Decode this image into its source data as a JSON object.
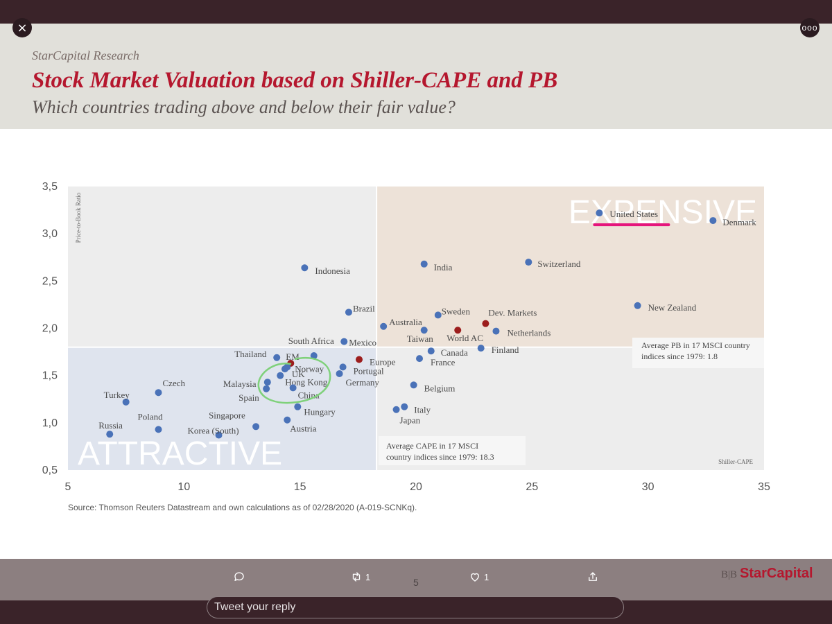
{
  "window": {
    "close_icon": "×",
    "more_icon": "ooo"
  },
  "slide": {
    "brand": "StarCapital Research",
    "title": "Stock Market Valuation based on Shiller-CAPE and PB",
    "subtitle": "Which countries trading above and below their fair value?",
    "source": "Source: Thomson Reuters Datastream and own calculations as of 02/28/2020 (A-019-SCNKq).",
    "logo_mark": "B|B",
    "logo_text": "StarCapital",
    "page_number": "5"
  },
  "chart_data": {
    "type": "scatter",
    "ylabel": "Price-to-Book Ratio",
    "xlabel": "Shiller-CAPE",
    "xlim": [
      5,
      35
    ],
    "ylim": [
      0.5,
      3.5
    ],
    "x_ticks": [
      "5",
      "10",
      "15",
      "20",
      "25",
      "30",
      "35"
    ],
    "y_ticks": [
      "0,5",
      "1,0",
      "1,5",
      "2,0",
      "2,5",
      "3,0",
      "3,5"
    ],
    "avg_cape": 18.3,
    "avg_pb": 1.8,
    "region_labels": {
      "expensive": "EXPENSIVE",
      "attractive": "ATTRACTIVE"
    },
    "annotations": {
      "avg_pb": "Average PB in 17 MSCI country indices since 1979: 1.8",
      "avg_cape": "Average CAPE in 17 MSCI country indices since 1979: 18.3"
    },
    "colors": {
      "country": "#4a72b8",
      "aggregate": "#9c1d1d",
      "highlight": "#e5157c",
      "circle": "#7fd17a"
    },
    "points": [
      {
        "label": "Russia",
        "x": 6.8,
        "y": 0.88,
        "kind": "country"
      },
      {
        "label": "Turkey",
        "x": 7.5,
        "y": 1.22,
        "kind": "country"
      },
      {
        "label": "Poland",
        "x": 8.9,
        "y": 0.93,
        "kind": "country"
      },
      {
        "label": "Czech",
        "x": 8.9,
        "y": 1.32,
        "kind": "country"
      },
      {
        "label": "Korea (South)",
        "x": 11.5,
        "y": 0.87,
        "kind": "country"
      },
      {
        "label": "Singapore",
        "x": 13.1,
        "y": 0.96,
        "kind": "country"
      },
      {
        "label": "Malaysia",
        "x": 13.6,
        "y": 1.43,
        "kind": "country"
      },
      {
        "label": "Spain",
        "x": 13.55,
        "y": 1.36,
        "kind": "country"
      },
      {
        "label": "Thailand",
        "x": 14.0,
        "y": 1.69,
        "kind": "country"
      },
      {
        "label": "EM",
        "x": 14.6,
        "y": 1.63,
        "kind": "aggregate"
      },
      {
        "label": "Norway",
        "x": 14.45,
        "y": 1.59,
        "kind": "country"
      },
      {
        "label": "UK",
        "x": 14.35,
        "y": 1.57,
        "kind": "country"
      },
      {
        "label": "Hong Kong",
        "x": 14.15,
        "y": 1.5,
        "kind": "country"
      },
      {
        "label": "China",
        "x": 14.7,
        "y": 1.37,
        "kind": "country"
      },
      {
        "label": "Austria",
        "x": 14.45,
        "y": 1.03,
        "kind": "country"
      },
      {
        "label": "Hungary",
        "x": 14.9,
        "y": 1.17,
        "kind": "country"
      },
      {
        "label": "Indonesia",
        "x": 15.2,
        "y": 2.64,
        "kind": "country"
      },
      {
        "label": "South Africa",
        "x": 15.6,
        "y": 1.71,
        "kind": "country"
      },
      {
        "label": "Germany",
        "x": 16.7,
        "y": 1.52,
        "kind": "country"
      },
      {
        "label": "Portugal",
        "x": 16.85,
        "y": 1.59,
        "kind": "country"
      },
      {
        "label": "Mexico",
        "x": 16.9,
        "y": 1.86,
        "kind": "country"
      },
      {
        "label": "Brazil",
        "x": 17.1,
        "y": 2.17,
        "kind": "country"
      },
      {
        "label": "Europe",
        "x": 17.55,
        "y": 1.67,
        "kind": "aggregate"
      },
      {
        "label": "Australia",
        "x": 18.6,
        "y": 2.02,
        "kind": "country"
      },
      {
        "label": "Japan",
        "x": 19.15,
        "y": 1.14,
        "kind": "country"
      },
      {
        "label": "Italy",
        "x": 19.5,
        "y": 1.17,
        "kind": "country"
      },
      {
        "label": "Belgium",
        "x": 19.9,
        "y": 1.4,
        "kind": "country"
      },
      {
        "label": "France",
        "x": 20.15,
        "y": 1.68,
        "kind": "country"
      },
      {
        "label": "Taiwan",
        "x": 20.35,
        "y": 1.98,
        "kind": "country"
      },
      {
        "label": "India",
        "x": 20.35,
        "y": 2.68,
        "kind": "country"
      },
      {
        "label": "Canada",
        "x": 20.65,
        "y": 1.76,
        "kind": "country"
      },
      {
        "label": "Sweden",
        "x": 20.95,
        "y": 2.14,
        "kind": "country"
      },
      {
        "label": "World AC",
        "x": 21.8,
        "y": 1.98,
        "kind": "aggregate"
      },
      {
        "label": "Finland",
        "x": 22.8,
        "y": 1.79,
        "kind": "country"
      },
      {
        "label": "Dev. Markets",
        "x": 23.0,
        "y": 2.05,
        "kind": "aggregate"
      },
      {
        "label": "Netherlands",
        "x": 23.45,
        "y": 1.97,
        "kind": "country"
      },
      {
        "label": "Switzerland",
        "x": 24.85,
        "y": 2.7,
        "kind": "country"
      },
      {
        "label": "United States",
        "x": 27.9,
        "y": 3.22,
        "kind": "country",
        "highlight": true
      },
      {
        "label": "New Zealand",
        "x": 29.55,
        "y": 2.24,
        "kind": "country"
      },
      {
        "label": "Denmark",
        "x": 32.8,
        "y": 3.14,
        "kind": "country"
      }
    ]
  },
  "actions": {
    "reply_icon": "reply-icon",
    "retweet_count": "1",
    "like_count": "1",
    "share_icon": "share-icon"
  },
  "reply_box": {
    "placeholder": "Tweet your reply"
  }
}
